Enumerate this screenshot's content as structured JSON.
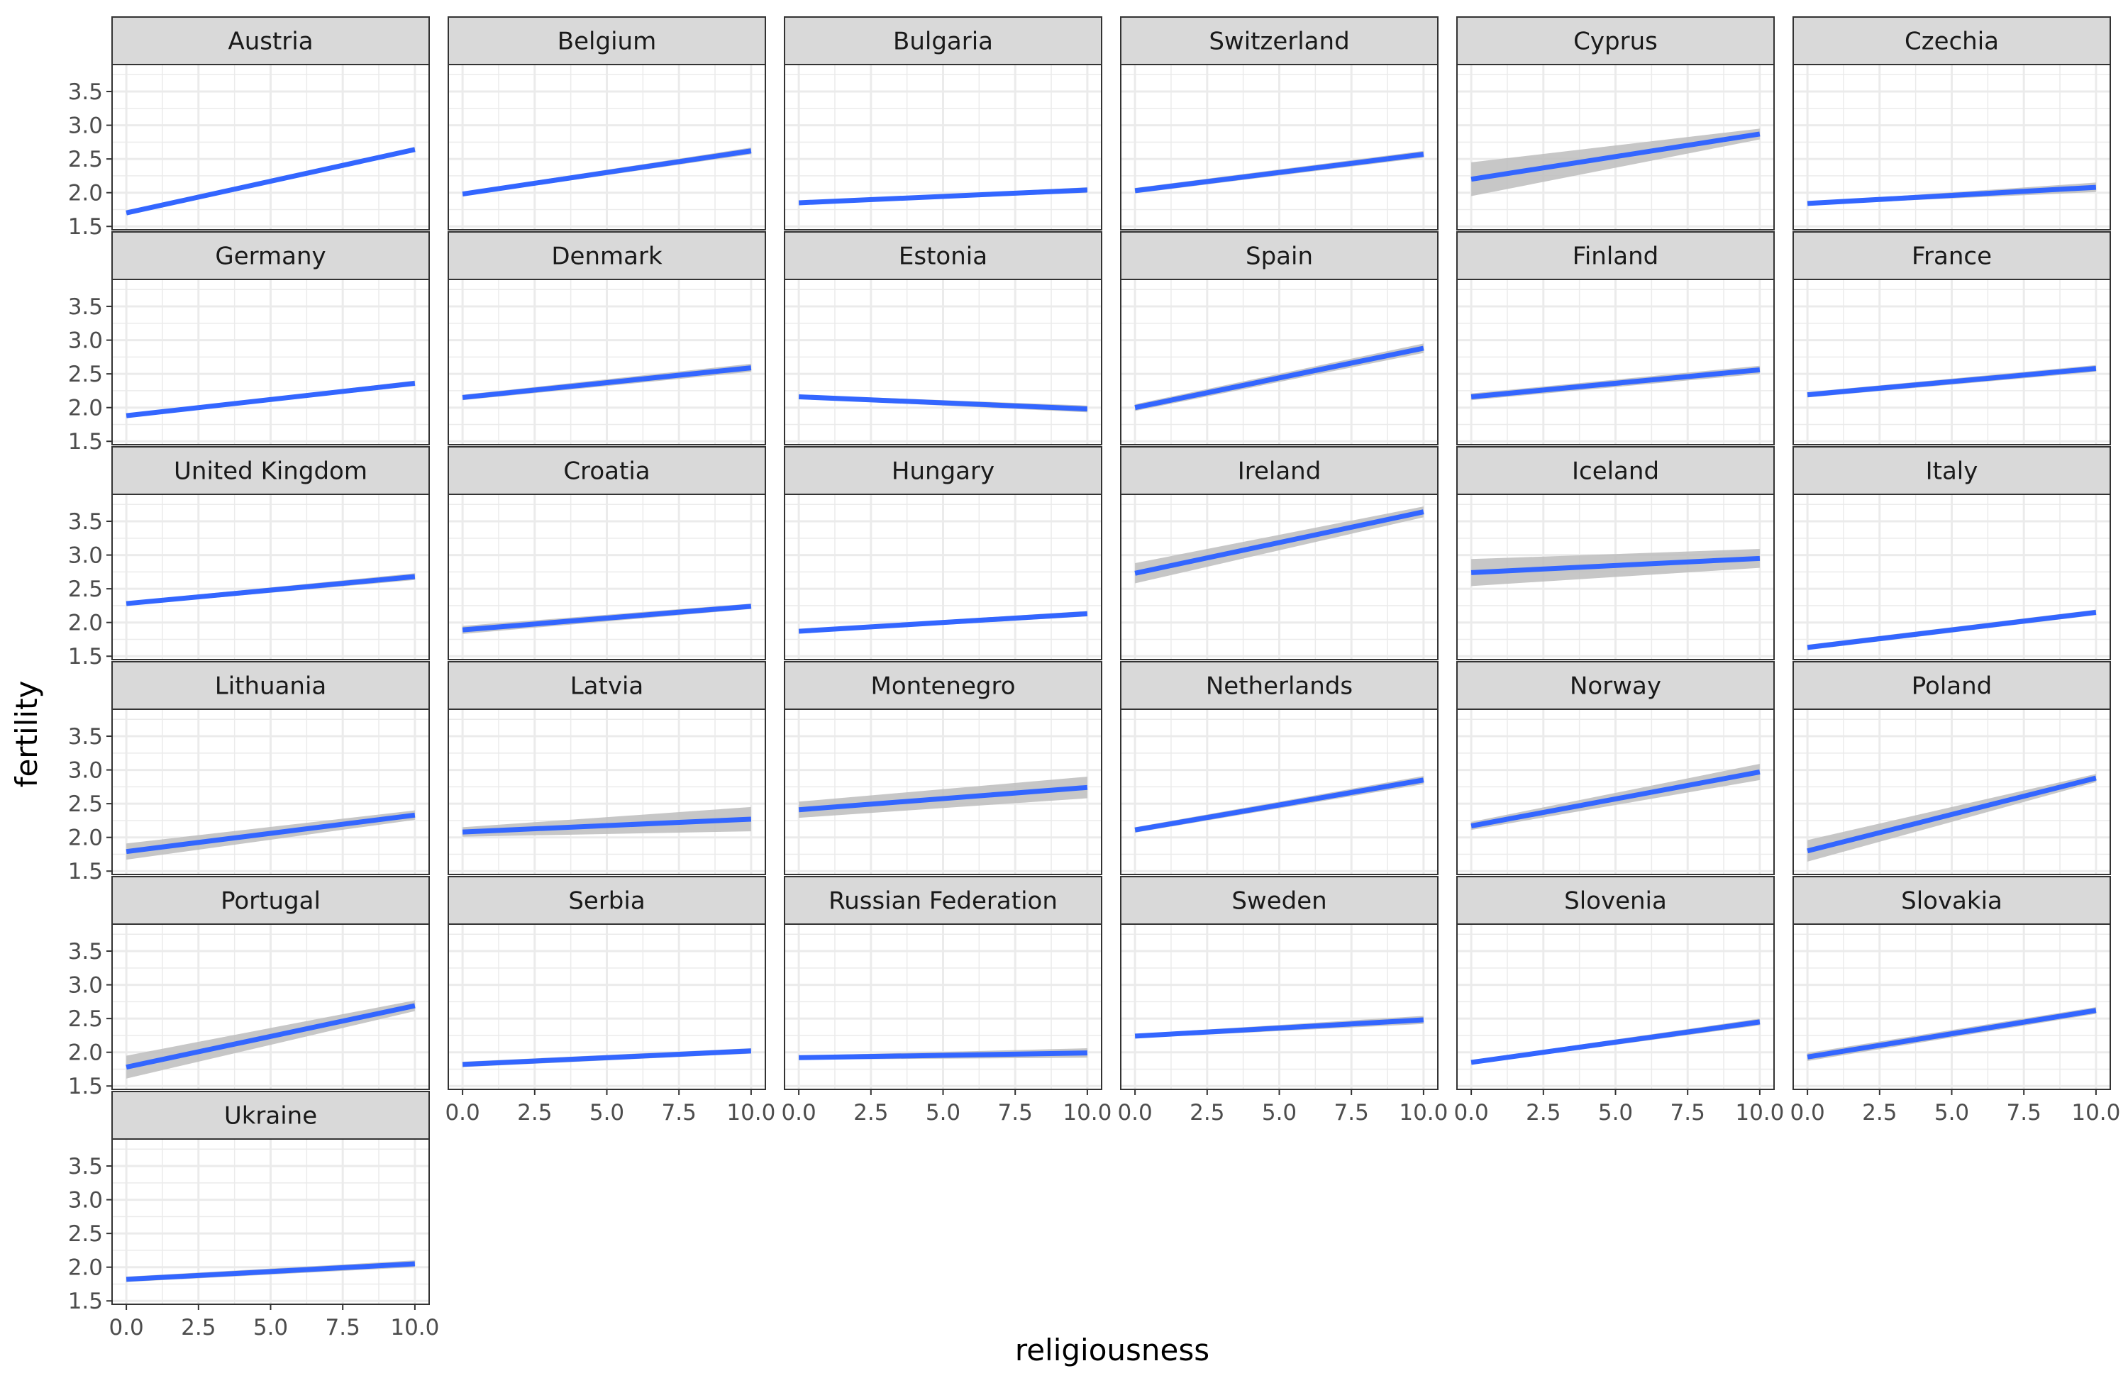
{
  "chart_data": {
    "type": "line",
    "layout": "facet-grid",
    "xlabel": "religiousness",
    "ylabel": "fertility",
    "xlim": [
      0,
      10
    ],
    "ylim": [
      1.45,
      3.9
    ],
    "x_ticks": [
      "0.0",
      "2.5",
      "5.0",
      "7.5",
      "10.0"
    ],
    "y_ticks": [
      "1.5",
      "2.0",
      "2.5",
      "3.0",
      "3.5"
    ],
    "grid": true,
    "colors": {
      "line": "#3366ff",
      "ribbon": "#bdbdbd",
      "strip": "#d9d9d9",
      "grid": "#ebebeb",
      "border": "#333333"
    },
    "panels": [
      {
        "name": "Austria",
        "x": [
          0,
          10
        ],
        "y": [
          1.7,
          2.64
        ],
        "se": [
          0.02,
          0.03
        ]
      },
      {
        "name": "Belgium",
        "x": [
          0,
          10
        ],
        "y": [
          1.98,
          2.62
        ],
        "se": [
          0.03,
          0.05
        ]
      },
      {
        "name": "Bulgaria",
        "x": [
          0,
          10
        ],
        "y": [
          1.85,
          2.04
        ],
        "se": [
          0.02,
          0.04
        ]
      },
      {
        "name": "Switzerland",
        "x": [
          0,
          10
        ],
        "y": [
          2.03,
          2.57
        ],
        "se": [
          0.04,
          0.05
        ]
      },
      {
        "name": "Cyprus",
        "x": [
          0,
          10
        ],
        "y": [
          2.2,
          2.87
        ],
        "se": [
          0.25,
          0.08
        ]
      },
      {
        "name": "Czechia",
        "x": [
          0,
          10
        ],
        "y": [
          1.84,
          2.08
        ],
        "se": [
          0.02,
          0.07
        ]
      },
      {
        "name": "Germany",
        "x": [
          0,
          10
        ],
        "y": [
          1.88,
          2.36
        ],
        "se": [
          0.02,
          0.04
        ]
      },
      {
        "name": "Denmark",
        "x": [
          0,
          10
        ],
        "y": [
          2.15,
          2.59
        ],
        "se": [
          0.04,
          0.06
        ]
      },
      {
        "name": "Estonia",
        "x": [
          0,
          10
        ],
        "y": [
          2.16,
          1.98
        ],
        "se": [
          0.03,
          0.05
        ]
      },
      {
        "name": "Spain",
        "x": [
          0,
          10
        ],
        "y": [
          2.0,
          2.88
        ],
        "se": [
          0.05,
          0.07
        ]
      },
      {
        "name": "Finland",
        "x": [
          0,
          10
        ],
        "y": [
          2.16,
          2.56
        ],
        "se": [
          0.05,
          0.06
        ]
      },
      {
        "name": "France",
        "x": [
          0,
          10
        ],
        "y": [
          2.19,
          2.58
        ],
        "se": [
          0.04,
          0.05
        ]
      },
      {
        "name": "United Kingdom",
        "x": [
          0,
          10
        ],
        "y": [
          2.28,
          2.68
        ],
        "se": [
          0.03,
          0.05
        ]
      },
      {
        "name": "Croatia",
        "x": [
          0,
          10
        ],
        "y": [
          1.89,
          2.24
        ],
        "se": [
          0.06,
          0.04
        ]
      },
      {
        "name": "Hungary",
        "x": [
          0,
          10
        ],
        "y": [
          1.87,
          2.13
        ],
        "se": [
          0.03,
          0.04
        ]
      },
      {
        "name": "Ireland",
        "x": [
          0,
          10
        ],
        "y": [
          2.73,
          3.64
        ],
        "se": [
          0.15,
          0.08
        ]
      },
      {
        "name": "Iceland",
        "x": [
          0,
          10
        ],
        "y": [
          2.74,
          2.95
        ],
        "se": [
          0.2,
          0.14
        ]
      },
      {
        "name": "Italy",
        "x": [
          0,
          10
        ],
        "y": [
          1.63,
          2.15
        ],
        "se": [
          0.04,
          0.04
        ]
      },
      {
        "name": "Lithuania",
        "x": [
          0,
          10
        ],
        "y": [
          1.79,
          2.33
        ],
        "se": [
          0.12,
          0.07
        ]
      },
      {
        "name": "Latvia",
        "x": [
          0,
          10
        ],
        "y": [
          2.08,
          2.27
        ],
        "se": [
          0.07,
          0.18
        ]
      },
      {
        "name": "Montenegro",
        "x": [
          0,
          10
        ],
        "y": [
          2.41,
          2.74
        ],
        "se": [
          0.12,
          0.16
        ]
      },
      {
        "name": "Netherlands",
        "x": [
          0,
          10
        ],
        "y": [
          2.11,
          2.85
        ],
        "se": [
          0.04,
          0.06
        ]
      },
      {
        "name": "Norway",
        "x": [
          0,
          10
        ],
        "y": [
          2.17,
          2.97
        ],
        "se": [
          0.06,
          0.12
        ]
      },
      {
        "name": "Poland",
        "x": [
          0,
          10
        ],
        "y": [
          1.8,
          2.88
        ],
        "se": [
          0.16,
          0.06
        ]
      },
      {
        "name": "Portugal",
        "x": [
          0,
          10
        ],
        "y": [
          1.78,
          2.69
        ],
        "se": [
          0.17,
          0.08
        ]
      },
      {
        "name": "Serbia",
        "x": [
          0,
          10
        ],
        "y": [
          1.82,
          2.02
        ],
        "se": [
          0.04,
          0.04
        ]
      },
      {
        "name": "Russian Federation",
        "x": [
          0,
          10
        ],
        "y": [
          1.92,
          1.99
        ],
        "se": [
          0.03,
          0.07
        ]
      },
      {
        "name": "Sweden",
        "x": [
          0,
          10
        ],
        "y": [
          2.24,
          2.48
        ],
        "se": [
          0.03,
          0.06
        ]
      },
      {
        "name": "Slovenia",
        "x": [
          0,
          10
        ],
        "y": [
          1.85,
          2.45
        ],
        "se": [
          0.03,
          0.05
        ]
      },
      {
        "name": "Slovakia",
        "x": [
          0,
          10
        ],
        "y": [
          1.93,
          2.62
        ],
        "se": [
          0.06,
          0.05
        ]
      },
      {
        "name": "Ukraine",
        "x": [
          0,
          10
        ],
        "y": [
          1.82,
          2.05
        ],
        "se": [
          0.04,
          0.05
        ]
      }
    ]
  }
}
